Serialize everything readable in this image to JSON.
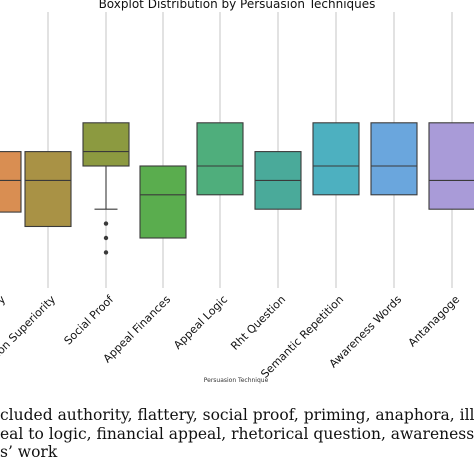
{
  "chart_data": {
    "type": "boxplot",
    "title": "Boxplot Distribution by Persuasion Techniques",
    "xlabel": "Persuasion Technique",
    "ylabel": "",
    "grid": "vertical",
    "categories": [
      {
        "label": "ry",
        "color": "#d98e52",
        "q1": 0.9,
        "median": 2.0,
        "q3": 3.0,
        "whisker_low": 0.9,
        "whisker_high": 3.0,
        "outliers": []
      },
      {
        "label": "Illusion Superiority",
        "color": "#a99245",
        "q1": 0.4,
        "median": 2.0,
        "q3": 3.0,
        "whisker_low": 0.4,
        "whisker_high": 3.0,
        "outliers": []
      },
      {
        "label": "Social Proof",
        "color": "#8c9a40",
        "q1": 2.5,
        "median": 3.0,
        "q3": 4.0,
        "whisker_low": 1.0,
        "whisker_high": 4.0,
        "outliers": [
          0.5,
          0.0,
          -0.5
        ]
      },
      {
        "label": "Appeal Finances",
        "color": "#5aad4e",
        "q1": 0.0,
        "median": 1.5,
        "q3": 2.5,
        "whisker_low": 0.0,
        "whisker_high": 2.5,
        "outliers": []
      },
      {
        "label": "Appeal Logic",
        "color": "#4fae7c",
        "q1": 1.5,
        "median": 2.5,
        "q3": 4.0,
        "whisker_low": 1.5,
        "whisker_high": 4.0,
        "outliers": []
      },
      {
        "label": "Rht Question",
        "color": "#4aaa9a",
        "q1": 1.0,
        "median": 2.0,
        "q3": 3.0,
        "whisker_low": 1.0,
        "whisker_high": 3.0,
        "outliers": []
      },
      {
        "label": "Semantic Repetition",
        "color": "#4db0c0",
        "q1": 1.5,
        "median": 2.5,
        "q3": 4.0,
        "whisker_low": 1.5,
        "whisker_high": 4.0,
        "outliers": []
      },
      {
        "label": "Awareness Words",
        "color": "#6aa6dd",
        "q1": 1.5,
        "median": 2.5,
        "q3": 4.0,
        "whisker_low": 1.5,
        "whisker_high": 4.0,
        "outliers": []
      },
      {
        "label": "Antanagoge",
        "color": "#a99bd8",
        "q1": 1.0,
        "median": 2.0,
        "q3": 4.0,
        "whisker_low": 1.0,
        "whisker_high": 4.0,
        "outliers": []
      }
    ]
  },
  "caption": {
    "lines": [
      "cluded authority, flattery, social proof, priming, anaphora, illusio",
      "eal to logic, financial appeal, rhetorical question, awareness wor",
      "s’ work"
    ]
  }
}
